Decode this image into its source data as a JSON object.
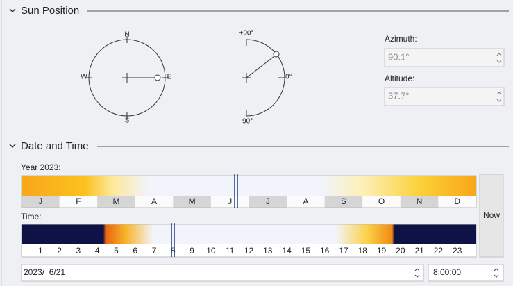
{
  "sections": [
    {
      "title": "Sun Position"
    },
    {
      "title": "Date and Time"
    }
  ],
  "compass": {
    "n": "N",
    "e": "E",
    "s": "S",
    "w": "W"
  },
  "altitude_dial": {
    "top": "+90°",
    "mid": "0°",
    "bottom": "-90°"
  },
  "azimuth": {
    "label": "Azimuth:",
    "value": "90.1°"
  },
  "altitude": {
    "label": "Altitude:",
    "value": "37.7°"
  },
  "year": {
    "label": "Year 2023:",
    "months": [
      "J",
      "F",
      "M",
      "A",
      "M",
      "J",
      "J",
      "A",
      "S",
      "O",
      "N",
      "D"
    ]
  },
  "time": {
    "label": "Time:",
    "hours": [
      "1",
      "2",
      "3",
      "4",
      "5",
      "6",
      "7",
      "8",
      "9",
      "10",
      "11",
      "12",
      "13",
      "14",
      "15",
      "16",
      "17",
      "18",
      "19",
      "20",
      "21",
      "22",
      "23"
    ]
  },
  "now_button": "Now",
  "date_input": "2023/  6/21",
  "time_input": "8:00:00"
}
